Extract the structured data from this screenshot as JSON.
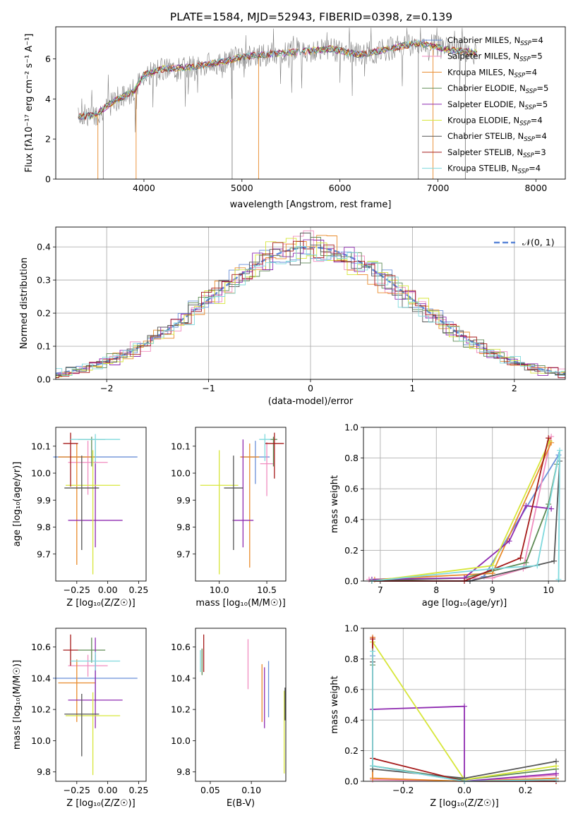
{
  "figure_title": "PLATE=1584, MJD=52943, FIBERID=0398, z=0.139",
  "colors": {
    "Chabrier MILES": "#6a8fd8",
    "Salpeter MILES": "#f08cbf",
    "Kroupa MILES": "#e98a2b",
    "Chabrier ELODIE": "#5e8a55",
    "Salpeter ELODIE": "#8e2ab0",
    "Kroupa ELODIE": "#d7e63a",
    "Chabrier STELIB": "#555555",
    "Salpeter STELIB": "#a51a1a",
    "Kroupa STELIB": "#7fd9dd",
    "data": "#808080",
    "normal": "#5b87d8"
  },
  "chart_data": [
    {
      "id": "spectrum",
      "type": "line",
      "title": "",
      "xlabel": "wavelength [Angstrom, rest frame]",
      "ylabel": "Flux [fλ10⁻¹⁷ erg cm⁻² s⁻¹ A⁻¹]",
      "xlim": [
        3100,
        8300
      ],
      "ylim": [
        0,
        7.6
      ],
      "xticks": [
        4000,
        5000,
        6000,
        7000,
        8000
      ],
      "yticks": [
        0,
        2,
        4,
        6
      ],
      "legend_placement": "right",
      "legend": [
        "Chabrier MILES, N_SSP=4",
        "Salpeter MILES, N_SSP=5",
        "Kroupa MILES, N_SSP=4",
        "Chabrier ELODIE, N_SSP=5",
        "Salpeter ELODIE, N_SSP=5",
        "Kroupa ELODIE, N_SSP=4",
        "Chabrier STELIB, N_SSP=4",
        "Salpeter STELIB, N_SSP=3",
        "Kroupa STELIB, N_SSP=4"
      ],
      "continuum": {
        "x": [
          3330,
          3500,
          3700,
          3900,
          4000,
          4200,
          4500,
          4800,
          5000,
          5300,
          5600,
          5900,
          6200,
          6500,
          6800,
          7100,
          7400
        ],
        "y": [
          3.1,
          3.2,
          3.9,
          4.4,
          5.2,
          5.5,
          5.6,
          5.85,
          6.1,
          6.25,
          6.35,
          6.5,
          6.2,
          6.5,
          6.8,
          6.45,
          6.3
        ]
      }
    },
    {
      "id": "residuals",
      "type": "bar",
      "title": "",
      "xlabel": "(data-model)/error",
      "ylabel": "Normed distribution",
      "xlim": [
        -2.5,
        2.5
      ],
      "ylim": [
        0,
        0.46
      ],
      "grid": true,
      "xticks": [
        -2,
        -1,
        0,
        1,
        2
      ],
      "xticklabels": [
        "−2",
        "−1",
        "0",
        "1",
        "2"
      ],
      "yticks": [
        0.0,
        0.1,
        0.2,
        0.3,
        0.4
      ],
      "yticklabels": [
        "0.0",
        "0.1",
        "0.2",
        "0.3",
        "0.4"
      ],
      "legend": [
        "𝒩(0, 1)"
      ],
      "legend_placement": "top-right",
      "bin_width": 0.1
    },
    {
      "id": "age-Z",
      "type": "scatter",
      "xlabel": "Z [log₁₀(Z/Z☉)]",
      "ylabel": "age  [log₁₀(age/yr)]",
      "xlim": [
        -0.42,
        0.31
      ],
      "ylim": [
        9.6,
        10.17
      ],
      "xticks": [
        -0.25,
        0.0,
        0.25
      ],
      "xticklabels": [
        "−0.25",
        "0.00",
        "0.25"
      ],
      "yticks": [
        9.7,
        9.8,
        9.9,
        10.0,
        10.1
      ],
      "yticklabels": [
        "9.7",
        "9.8",
        "9.9",
        "10.0",
        "10.1"
      ],
      "points": [
        {
          "model": "Chabrier MILES",
          "x": -0.1,
          "xerr": 0.34,
          "y": 10.06,
          "yerr": [
            0.1,
            0.06
          ]
        },
        {
          "model": "Salpeter MILES",
          "x": -0.16,
          "xerr": 0.16,
          "y": 10.04,
          "yerr": [
            0.12,
            0.08
          ]
        },
        {
          "model": "Kroupa MILES",
          "x": -0.25,
          "xerr": 0.15,
          "y": 10.06,
          "yerr": [
            0.4,
            0.05
          ]
        },
        {
          "model": "Chabrier ELODIE",
          "x": -0.13,
          "xerr": 0.11,
          "y": 10.125,
          "yerr": [
            0.1,
            0.01
          ]
        },
        {
          "model": "Salpeter ELODIE",
          "x": -0.1,
          "xerr": 0.22,
          "y": 9.825,
          "yerr": [
            0.1,
            0.21
          ]
        },
        {
          "model": "Kroupa ELODIE",
          "x": -0.12,
          "xerr": 0.22,
          "y": 9.955,
          "yerr": [
            0.33,
            0.13
          ]
        },
        {
          "model": "Chabrier STELIB",
          "x": -0.21,
          "xerr": 0.14,
          "y": 9.945,
          "yerr": [
            0.23,
            0.12
          ]
        },
        {
          "model": "Salpeter STELIB",
          "x": -0.3,
          "xerr": 0.06,
          "y": 10.11,
          "yerr": [
            0.16,
            0.04
          ]
        },
        {
          "model": "Kroupa STELIB",
          "x": -0.1,
          "xerr": 0.2,
          "y": 10.125,
          "yerr": [
            0.08,
            0.02
          ]
        }
      ]
    },
    {
      "id": "age-mass",
      "type": "scatter",
      "xlabel": "mass [log₁₀(M/M☉)]",
      "ylabel": "",
      "xlim": [
        9.75,
        10.7
      ],
      "ylim": [
        9.6,
        10.17
      ],
      "xticks": [
        10.0,
        10.5
      ],
      "xticklabels": [
        "10.0",
        "10.5"
      ],
      "yticks": [
        9.7,
        9.8,
        9.9,
        10.0,
        10.1
      ],
      "yticklabels": [
        "9.7",
        "9.8",
        "9.9",
        "10.0",
        "10.1"
      ],
      "points": [
        {
          "model": "Chabrier MILES",
          "x": 10.38,
          "xerr": 0.15,
          "y": 10.06,
          "yerr": [
            0.1,
            0.06
          ]
        },
        {
          "model": "Salpeter MILES",
          "x": 10.5,
          "xerr": 0.07,
          "y": 10.035,
          "yerr": [
            0.12,
            0.08
          ]
        },
        {
          "model": "Kroupa MILES",
          "x": 10.32,
          "xerr": 0.1,
          "y": 10.06,
          "yerr": [
            0.41,
            0.05
          ]
        },
        {
          "model": "Chabrier ELODIE",
          "x": 10.57,
          "xerr": 0.04,
          "y": 10.125,
          "yerr": [
            0.1,
            0.01
          ]
        },
        {
          "model": "Salpeter ELODIE",
          "x": 10.25,
          "xerr": 0.11,
          "y": 9.825,
          "yerr": [
            0.1,
            0.3
          ]
        },
        {
          "model": "Kroupa ELODIE",
          "x": 10.0,
          "xerr": 0.2,
          "y": 9.955,
          "yerr": [
            0.33,
            0.13
          ]
        },
        {
          "model": "Chabrier STELIB",
          "x": 10.15,
          "xerr": 0.1,
          "y": 9.945,
          "yerr": [
            0.23,
            0.12
          ]
        },
        {
          "model": "Salpeter STELIB",
          "x": 10.58,
          "xerr": 0.1,
          "y": 10.11,
          "yerr": [
            0.13,
            0.04
          ]
        },
        {
          "model": "Kroupa STELIB",
          "x": 10.48,
          "xerr": 0.06,
          "y": 10.125,
          "yerr": [
            0.08,
            0.02
          ]
        }
      ]
    },
    {
      "id": "mass-weight-age",
      "type": "line",
      "xlabel": "age  [log₁₀(age/yr)]",
      "ylabel": "mass weight",
      "xlim": [
        6.7,
        10.3
      ],
      "ylim": [
        0,
        1.0
      ],
      "grid": true,
      "xticks": [
        7,
        8,
        9,
        10
      ],
      "xticklabels": [
        "7",
        "8",
        "9",
        "10"
      ],
      "yticks": [
        0.0,
        0.2,
        0.4,
        0.6,
        0.8,
        1.0
      ],
      "yticklabels": [
        "0.0",
        "0.2",
        "0.4",
        "0.6",
        "0.8",
        "1.0"
      ],
      "series": [
        {
          "model": "Chabrier MILES",
          "x": [
            6.85,
            8.6,
            8.85,
            10.18
          ],
          "y": [
            0.0,
            0.0,
            0.03,
            0.82
          ]
        },
        {
          "model": "Salpeter MILES",
          "x": [
            6.8,
            9.0,
            9.55,
            10.05
          ],
          "y": [
            0.01,
            0.02,
            0.08,
            0.94
          ]
        },
        {
          "model": "Kroupa MILES",
          "x": [
            6.9,
            9.0,
            10.05
          ],
          "y": [
            0.01,
            0.05,
            0.9
          ]
        },
        {
          "model": "Chabrier ELODIE",
          "x": [
            6.85,
            8.5,
            9.6,
            10.0,
            10.15
          ],
          "y": [
            0.0,
            0.02,
            0.12,
            0.5,
            0.76
          ]
        },
        {
          "model": "Salpeter ELODIE",
          "x": [
            6.85,
            8.5,
            9.3,
            9.6,
            10.05
          ],
          "y": [
            0.01,
            0.02,
            0.26,
            0.49,
            0.47
          ]
        },
        {
          "model": "Kroupa ELODIE",
          "x": [
            6.85,
            9.0,
            10.02
          ],
          "y": [
            0.0,
            0.1,
            0.91
          ]
        },
        {
          "model": "Chabrier STELIB",
          "x": [
            6.85,
            8.6,
            10.1,
            10.2
          ],
          "y": [
            0.0,
            0.0,
            0.13,
            0.78
          ]
        },
        {
          "model": "Salpeter STELIB",
          "x": [
            6.85,
            8.5,
            9.5,
            10.0
          ],
          "y": [
            0.0,
            0.0,
            0.15,
            0.93
          ]
        },
        {
          "model": "Kroupa STELIB",
          "x": [
            6.85,
            9.0,
            9.8,
            10.2,
            10.18
          ],
          "y": [
            0.0,
            0.08,
            0.1,
            0.85,
            0.01
          ]
        }
      ]
    },
    {
      "id": "mass-Z",
      "type": "scatter",
      "xlabel": "Z [log₁₀(Z/Z☉)]",
      "ylabel": "mass [log₁₀(M/M☉)]",
      "xlim": [
        -0.42,
        0.31
      ],
      "ylim": [
        9.74,
        10.72
      ],
      "xticks": [
        -0.25,
        0.0,
        0.25
      ],
      "xticklabels": [
        "−0.25",
        "0.00",
        "0.25"
      ],
      "yticks": [
        9.8,
        10.0,
        10.2,
        10.4,
        10.6
      ],
      "yticklabels": [
        "9.8",
        "10.0",
        "10.2",
        "10.4",
        "10.6"
      ],
      "points": [
        {
          "model": "Chabrier MILES",
          "x": -0.1,
          "xerr": 0.34,
          "y": 10.4,
          "yerr": [
            0.15,
            0.15
          ]
        },
        {
          "model": "Salpeter MILES",
          "x": -0.16,
          "xerr": 0.16,
          "y": 10.48,
          "yerr": [
            0.07,
            0.07
          ]
        },
        {
          "model": "Kroupa MILES",
          "x": -0.25,
          "xerr": 0.15,
          "y": 10.37,
          "yerr": [
            0.25,
            0.15
          ]
        },
        {
          "model": "Chabrier ELODIE",
          "x": -0.13,
          "xerr": 0.11,
          "y": 10.58,
          "yerr": [
            0.08,
            0.08
          ]
        },
        {
          "model": "Salpeter ELODIE",
          "x": -0.1,
          "xerr": 0.22,
          "y": 10.26,
          "yerr": [
            0.18,
            0.4
          ]
        },
        {
          "model": "Kroupa ELODIE",
          "x": -0.12,
          "xerr": 0.22,
          "y": 10.16,
          "yerr": [
            0.38,
            0.15
          ]
        },
        {
          "model": "Chabrier STELIB",
          "x": -0.21,
          "xerr": 0.14,
          "y": 10.17,
          "yerr": [
            0.27,
            0.13
          ]
        },
        {
          "model": "Salpeter STELIB",
          "x": -0.3,
          "xerr": 0.06,
          "y": 10.58,
          "yerr": [
            0.1,
            0.1
          ]
        },
        {
          "model": "Kroupa STELIB",
          "x": -0.1,
          "xerr": 0.2,
          "y": 10.51,
          "yerr": [
            0.06,
            0.06
          ]
        }
      ]
    },
    {
      "id": "mass-ebv",
      "type": "scatter",
      "xlabel": "E(B-V)",
      "ylabel": "",
      "xlim": [
        0.032,
        0.142
      ],
      "ylim": [
        9.74,
        10.72
      ],
      "xticks": [
        0.05,
        0.1
      ],
      "xticklabels": [
        "0.05",
        "0.10"
      ],
      "yticks": [
        9.8,
        10.0,
        10.2,
        10.4,
        10.6
      ],
      "yticklabels": [
        "9.8",
        "10.0",
        "10.2",
        "10.4",
        "10.6"
      ],
      "points": [
        {
          "model": "Chabrier MILES",
          "x": 0.121,
          "y": 10.33,
          "yerr": [
            0.18,
            0.18
          ]
        },
        {
          "model": "Salpeter MILES",
          "x": 0.096,
          "y": 10.49,
          "yerr": [
            0.16,
            0.16
          ]
        },
        {
          "model": "Kroupa MILES",
          "x": 0.113,
          "y": 10.33,
          "yerr": [
            0.21,
            0.16
          ]
        },
        {
          "model": "Chabrier ELODIE",
          "x": 0.04,
          "y": 10.51,
          "yerr": [
            0.09,
            0.08
          ]
        },
        {
          "model": "Salpeter ELODIE",
          "x": 0.116,
          "y": 10.22,
          "yerr": [
            0.14,
            0.25
          ]
        },
        {
          "model": "Kroupa ELODIE",
          "x": 0.14,
          "y": 10.05,
          "yerr": [
            0.26,
            0.27
          ]
        },
        {
          "model": "Chabrier STELIB",
          "x": 0.141,
          "y": 10.2,
          "yerr": [
            0.07,
            0.14
          ]
        },
        {
          "model": "Salpeter STELIB",
          "x": 0.042,
          "y": 10.56,
          "yerr": [
            0.12,
            0.12
          ]
        },
        {
          "model": "Kroupa STELIB",
          "x": 0.038,
          "y": 10.51,
          "yerr": [
            0.07,
            0.07
          ]
        }
      ]
    },
    {
      "id": "mass-weight-Z",
      "type": "line",
      "xlabel": "Z [log₁₀(Z/Z☉)]",
      "ylabel": "mass weight",
      "xlim": [
        -0.33,
        0.33
      ],
      "ylim": [
        0,
        1.0
      ],
      "grid": true,
      "xticks": [
        -0.2,
        0.0,
        0.2
      ],
      "xticklabels": [
        "−0.2",
        "0.0",
        "0.2"
      ],
      "yticks": [
        0.0,
        0.2,
        0.4,
        0.6,
        0.8,
        1.0
      ],
      "yticklabels": [
        "0.0",
        "0.2",
        "0.4",
        "0.6",
        "0.8",
        "1.0"
      ],
      "series": [
        {
          "model": "Chabrier MILES",
          "x": [
            -0.3,
            -0.3,
            0.0,
            0.3
          ],
          "y": [
            0.82,
            0.1,
            0.0,
            0.02
          ]
        },
        {
          "model": "Salpeter MILES",
          "x": [
            -0.3,
            -0.3,
            0.0,
            0.3
          ],
          "y": [
            0.94,
            0.01,
            0.0,
            0.04
          ]
        },
        {
          "model": "Kroupa MILES",
          "x": [
            -0.3,
            -0.3,
            0.0,
            0.3
          ],
          "y": [
            0.94,
            0.02,
            0.0,
            0.02
          ]
        },
        {
          "model": "Chabrier ELODIE",
          "x": [
            -0.3,
            -0.3,
            0.0,
            0.3
          ],
          "y": [
            0.76,
            0.1,
            0.01,
            0.08
          ]
        },
        {
          "model": "Salpeter ELODIE",
          "x": [
            -0.3,
            -0.3,
            0.0,
            0.0,
            0.3
          ],
          "y": [
            0.47,
            0.47,
            0.49,
            0.0,
            0.05
          ]
        },
        {
          "model": "Kroupa ELODIE",
          "x": [
            -0.3,
            0.0,
            0.3
          ],
          "y": [
            0.91,
            0.01,
            0.1
          ]
        },
        {
          "model": "Chabrier STELIB",
          "x": [
            -0.3,
            -0.3,
            0.0,
            0.3
          ],
          "y": [
            0.78,
            0.08,
            0.02,
            0.13
          ]
        },
        {
          "model": "Salpeter STELIB",
          "x": [
            -0.3,
            -0.3,
            0.0,
            0.3
          ],
          "y": [
            0.93,
            0.15,
            0.0,
            0.0
          ]
        },
        {
          "model": "Kroupa STELIB",
          "x": [
            -0.3,
            -0.3,
            0.0,
            0.3
          ],
          "y": [
            0.85,
            0.1,
            0.0,
            0.01
          ]
        }
      ]
    }
  ]
}
